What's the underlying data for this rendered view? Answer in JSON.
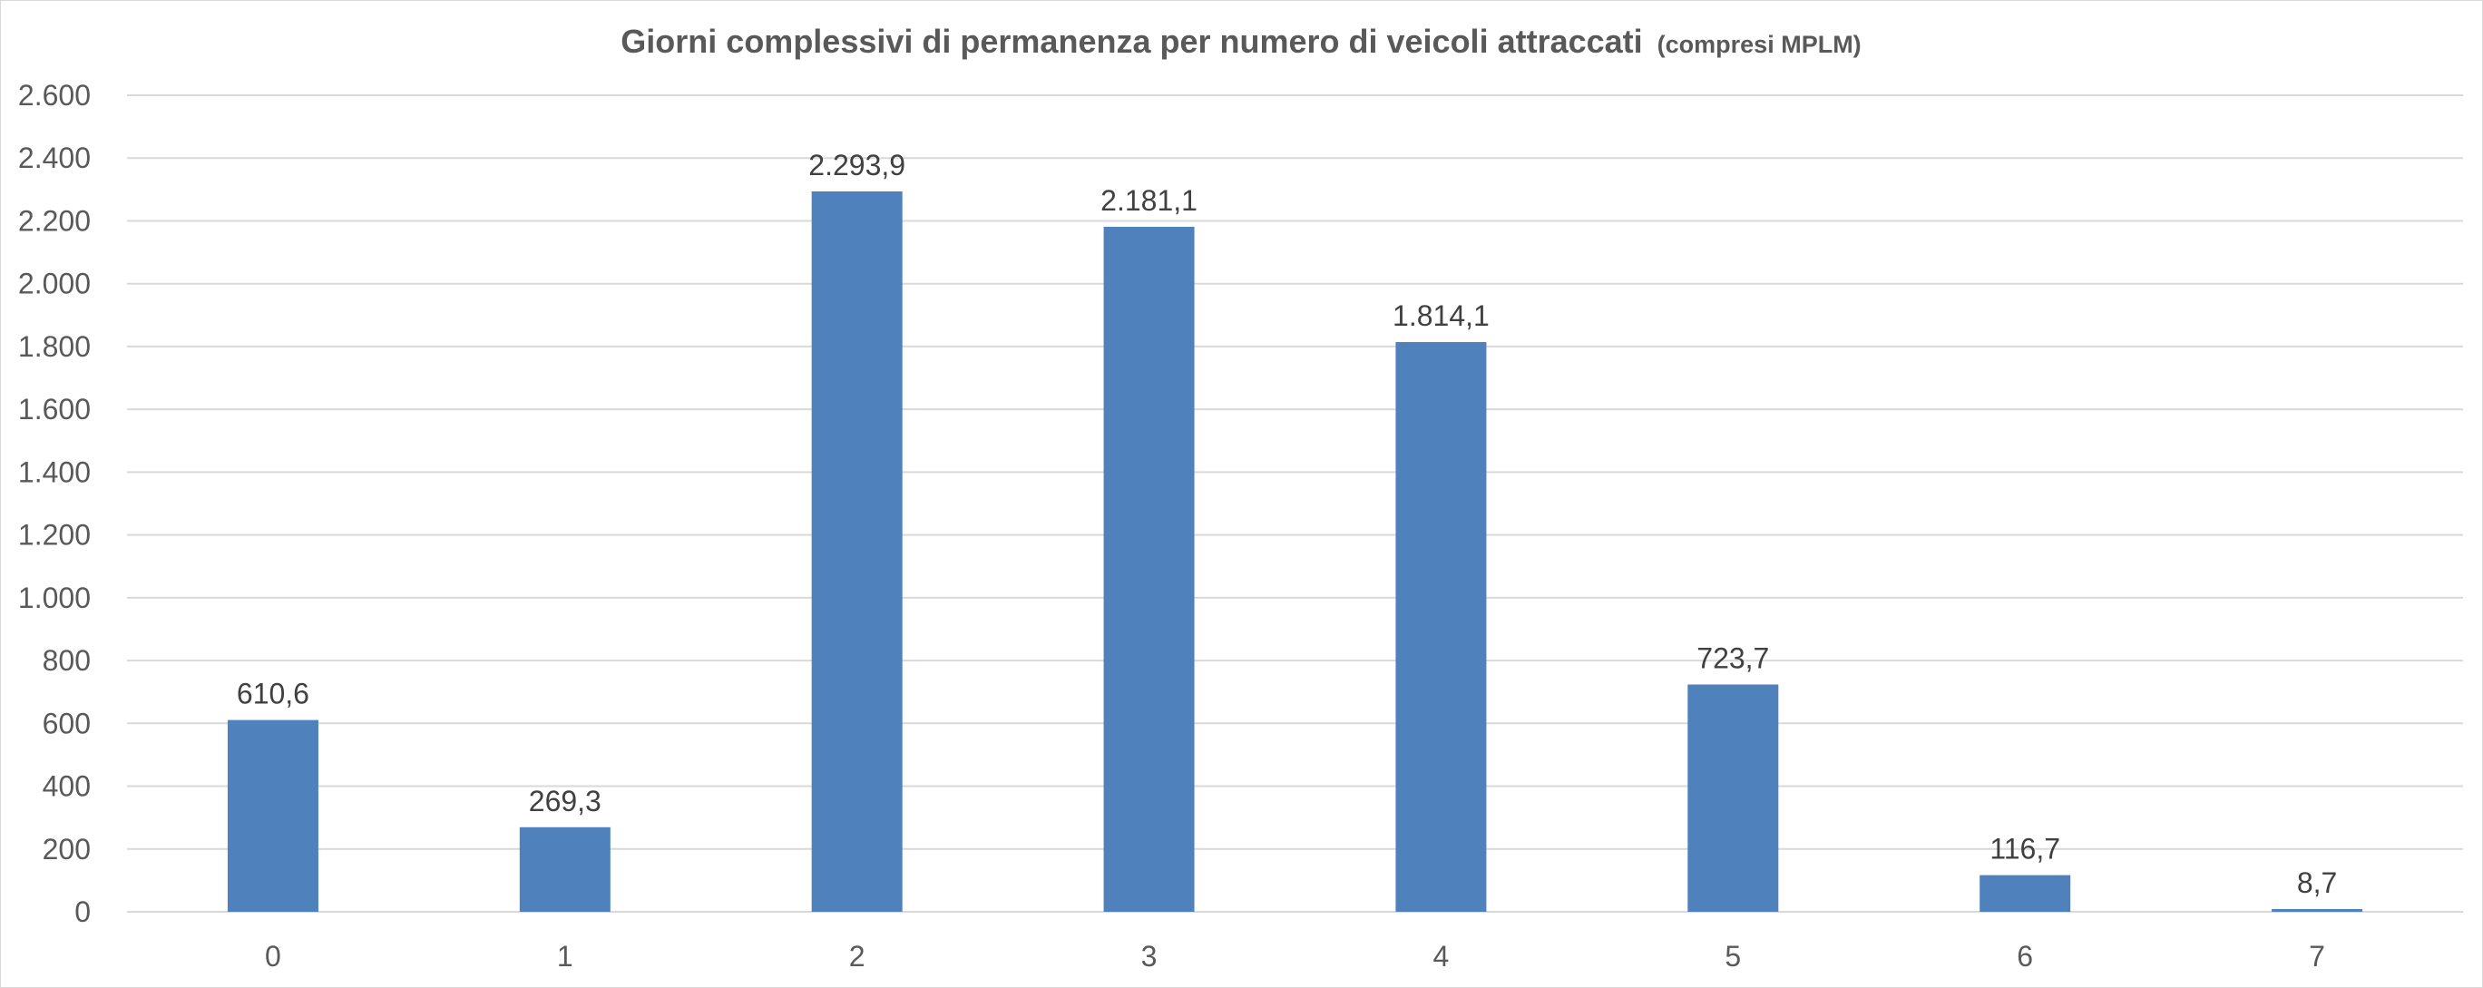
{
  "chart_data": {
    "type": "bar",
    "title": "Giorni complessivi di permanenza per numero di veicoli attraccati",
    "subtitle": "(compresi MPLM)",
    "xlabel": "",
    "ylabel": "",
    "categories": [
      "0",
      "1",
      "2",
      "3",
      "4",
      "5",
      "6",
      "7"
    ],
    "values": [
      610.6,
      269.3,
      2293.9,
      2181.1,
      1814.1,
      723.7,
      116.7,
      8.7
    ],
    "data_labels": [
      "610,6",
      "269,3",
      "2.293,9",
      "2.181,1",
      "1.814,1",
      "723,7",
      "116,7",
      "8,7"
    ],
    "ylim": [
      0,
      2600
    ],
    "yticks": [
      0,
      200,
      400,
      600,
      800,
      1000,
      1200,
      1400,
      1600,
      1800,
      2000,
      2200,
      2400,
      2600
    ],
    "ytick_labels": [
      "0",
      "200",
      "400",
      "600",
      "800",
      "1.000",
      "1.200",
      "1.400",
      "1.600",
      "1.800",
      "2.000",
      "2.200",
      "2.400",
      "2.600"
    ],
    "grid": true,
    "legend": "none",
    "bar_color": "#4f81bd"
  }
}
